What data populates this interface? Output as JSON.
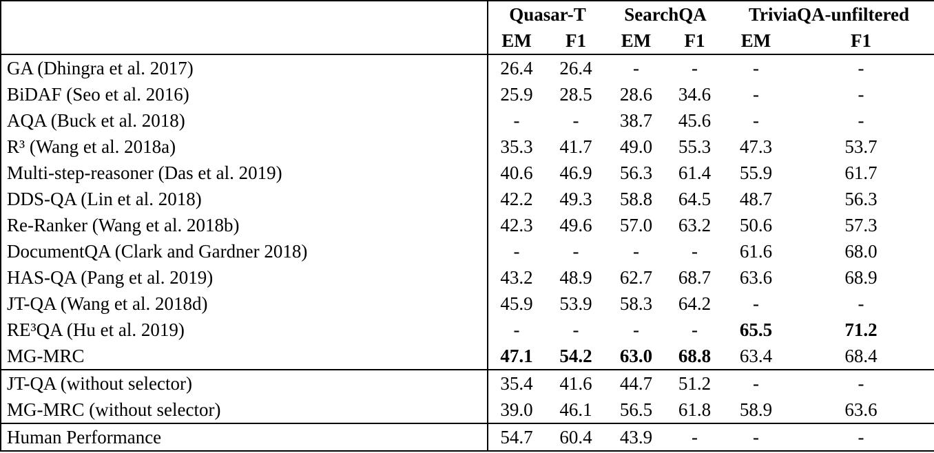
{
  "table": {
    "column_groups": [
      {
        "label": "",
        "span": 1
      },
      {
        "label": "Quasar-T",
        "span": 2
      },
      {
        "label": "SearchQA",
        "span": 2
      },
      {
        "label": "TriviaQA-unfiltered",
        "span": 2
      }
    ],
    "sub_headers": [
      "EM",
      "F1",
      "EM",
      "F1",
      "EM",
      "F1"
    ],
    "sections": [
      {
        "rows": [
          {
            "name": "GA (Dhingra et al. 2017)",
            "values": [
              "26.4",
              "26.4",
              "-",
              "-",
              "-",
              "-"
            ],
            "bold": []
          },
          {
            "name": "BiDAF (Seo et al. 2016)",
            "values": [
              "25.9",
              "28.5",
              "28.6",
              "34.6",
              "-",
              "-"
            ],
            "bold": []
          },
          {
            "name": "AQA (Buck et al. 2018)",
            "values": [
              "-",
              "-",
              "38.7",
              "45.6",
              "-",
              "-"
            ],
            "bold": []
          },
          {
            "name": "R³ (Wang et al. 2018a)",
            "values": [
              "35.3",
              "41.7",
              "49.0",
              "55.3",
              "47.3",
              "53.7"
            ],
            "bold": []
          },
          {
            "name": "Multi-step-reasoner (Das et al. 2019)",
            "values": [
              "40.6",
              "46.9",
              "56.3",
              "61.4",
              "55.9",
              "61.7"
            ],
            "bold": []
          },
          {
            "name": "DDS-QA (Lin et al. 2018)",
            "values": [
              "42.2",
              "49.3",
              "58.8",
              "64.5",
              "48.7",
              "56.3"
            ],
            "bold": []
          },
          {
            "name": "Re-Ranker (Wang et al. 2018b)",
            "values": [
              "42.3",
              "49.6",
              "57.0",
              "63.2",
              "50.6",
              "57.3"
            ],
            "bold": []
          },
          {
            "name": "DocumentQA (Clark and Gardner 2018)",
            "values": [
              "-",
              "-",
              "-",
              "-",
              "61.6",
              "68.0"
            ],
            "bold": []
          },
          {
            "name": "HAS-QA (Pang et al. 2019)",
            "values": [
              "43.2",
              "48.9",
              "62.7",
              "68.7",
              "63.6",
              "68.9"
            ],
            "bold": []
          },
          {
            "name": "JT-QA (Wang et al. 2018d)",
            "values": [
              "45.9",
              "53.9",
              "58.3",
              "64.2",
              "-",
              "-"
            ],
            "bold": []
          },
          {
            "name": "RE³QA (Hu et al. 2019)",
            "values": [
              "-",
              "-",
              "-",
              "-",
              "65.5",
              "71.2"
            ],
            "bold": [
              4,
              5
            ]
          },
          {
            "name": "MG-MRC",
            "values": [
              "47.1",
              "54.2",
              "63.0",
              "68.8",
              "63.4",
              "68.4"
            ],
            "bold": [
              0,
              1,
              2,
              3
            ]
          }
        ]
      },
      {
        "rows": [
          {
            "name": "JT-QA (without selector)",
            "values": [
              "35.4",
              "41.6",
              "44.7",
              "51.2",
              "-",
              "-"
            ],
            "bold": []
          },
          {
            "name": "MG-MRC (without selector)",
            "values": [
              "39.0",
              "46.1",
              "56.5",
              "61.8",
              "58.9",
              "63.6"
            ],
            "bold": []
          }
        ]
      },
      {
        "rows": [
          {
            "name": "Human Performance",
            "values": [
              "54.7",
              "60.4",
              "43.9",
              "-",
              "-",
              "-"
            ],
            "bold": []
          }
        ]
      }
    ]
  }
}
